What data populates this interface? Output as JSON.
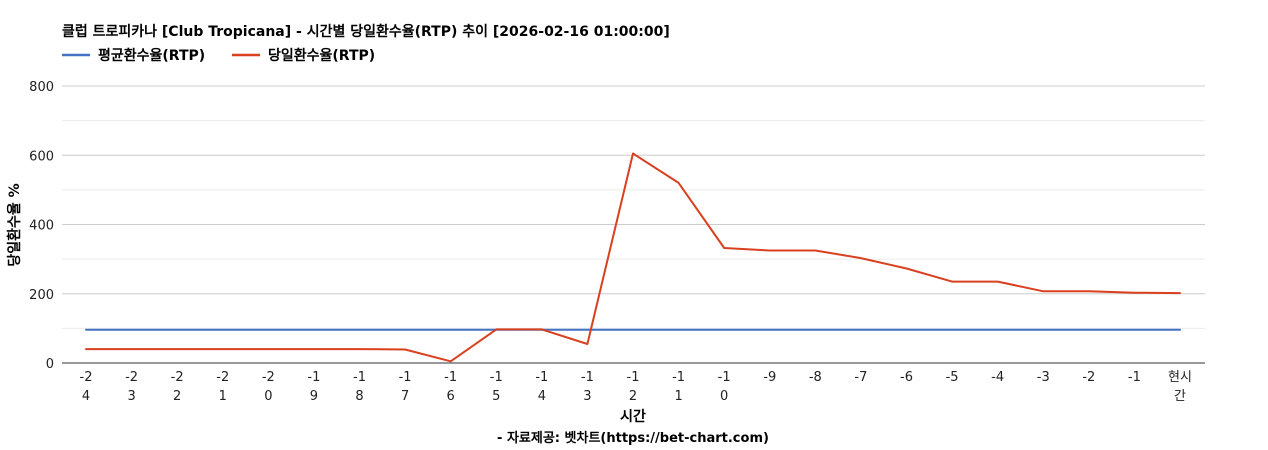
{
  "chart_data": {
    "type": "line",
    "title": "클럽 트로피카나 [Club Tropicana] - 시간별 당일환수율(RTP) 추이 [2026-02-16 01:00:00]",
    "xlabel": "시간",
    "ylabel": "당일환수율 %",
    "source": "- 자료제공: 벳차트(https://bet-chart.com)",
    "categories": [
      "-24",
      "-23",
      "-22",
      "-21",
      "-20",
      "-19",
      "-18",
      "-17",
      "-16",
      "-15",
      "-14",
      "-13",
      "-12",
      "-11",
      "-10",
      "-9",
      "-8",
      "-7",
      "-6",
      "-5",
      "-4",
      "-3",
      "-2",
      "-1",
      "현시간"
    ],
    "ylim": [
      0,
      800
    ],
    "yticks": [
      0,
      200,
      400,
      600,
      800
    ],
    "grid": true,
    "legend_position": "top-left",
    "series": [
      {
        "name": "평균환수율(RTP)",
        "color": "#4472c4",
        "values": [
          96,
          96,
          96,
          96,
          96,
          96,
          96,
          96,
          96,
          96,
          96,
          96,
          96,
          96,
          96,
          96,
          96,
          96,
          96,
          96,
          96,
          96,
          96,
          96,
          96
        ]
      },
      {
        "name": "당일환수율(RTP)",
        "color": "#d8401f",
        "values": [
          40,
          40,
          40,
          40,
          40,
          40,
          40,
          39,
          5,
          97,
          97,
          55,
          605,
          520,
          332,
          325,
          325,
          303,
          273,
          235,
          235,
          207,
          207,
          203,
          202
        ]
      }
    ]
  }
}
